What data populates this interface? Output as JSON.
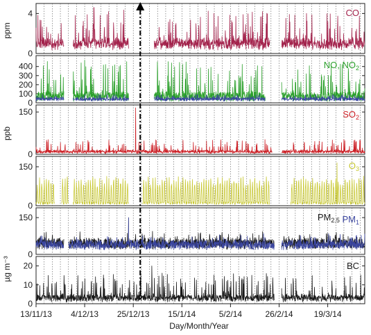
{
  "chart_data": {
    "type": "line",
    "xlabel": "Day/Month/Year",
    "x_tick_labels": [
      "13/11/13",
      "4/12/13",
      "25/12/13",
      "15/1/14",
      "5/2/14",
      "26/2/14",
      "19/3/14"
    ],
    "x_range": [
      "13/11/13",
      "4/4/14"
    ],
    "event_marker_date": "28/12/13",
    "ylabels": {
      "ppm": "ppm",
      "ppb": "ppb",
      "ugm3": "µg m⁻³"
    },
    "panels": [
      {
        "id": "co",
        "ylim": [
          0,
          5
        ],
        "yticks": [
          0,
          4
        ],
        "ytick_labels": [
          "0",
          "4"
        ],
        "labels": [
          {
            "text": "CO",
            "color": "#a3234c"
          }
        ],
        "series": [
          {
            "name": "CO",
            "color": "#a3234c",
            "base": 0.6,
            "spike": 2.2,
            "max": 4.6,
            "peak_date": "8/12/13",
            "gaps": [
              [
                "25/11/13",
                "29/11/13"
              ],
              [
                "23/12/13",
                "3/1/14"
              ],
              [
                "22/2/14",
                "27/2/14"
              ]
            ]
          }
        ]
      },
      {
        "id": "nox",
        "ylim": [
          0,
          520
        ],
        "yticks": [
          0,
          100,
          200,
          300,
          400
        ],
        "ytick_labels": [
          "0",
          "100",
          "200",
          "300",
          "400"
        ],
        "labels": [
          {
            "text": "NO, NO",
            "sub": "2",
            "color": "#2ca02c"
          }
        ],
        "series": [
          {
            "name": "NO",
            "color": "#2ca02c",
            "base": 25,
            "spike": 270,
            "max": 470,
            "peak_date": "4/12/13",
            "gaps": [
              [
                "25/11/13",
                "29/11/13"
              ],
              [
                "23/12/13",
                "3/1/14"
              ],
              [
                "20/2/14",
                "27/2/14"
              ]
            ]
          },
          {
            "name": "NO2",
            "color": "#3b46a0",
            "base": 35,
            "spike": 35,
            "max": 90,
            "peak_date": "4/12/13",
            "gaps": [
              [
                "25/11/13",
                "29/11/13"
              ],
              [
                "23/12/13",
                "3/1/14"
              ],
              [
                "20/2/14",
                "27/2/14"
              ]
            ]
          }
        ]
      },
      {
        "id": "so2",
        "ylim": [
          0,
          175
        ],
        "yticks": [
          0,
          150
        ],
        "ytick_labels": [
          "0",
          "150"
        ],
        "labels": [
          {
            "text": "SO",
            "sub": "2",
            "color": "#cc2127"
          }
        ],
        "series": [
          {
            "name": "SO2",
            "color": "#cc2127",
            "base": 4,
            "spike": 30,
            "max": 165,
            "peak_date": "26/12/13",
            "gaps": [
              [
                "23/2/14",
                "27/2/14"
              ]
            ]
          }
        ]
      },
      {
        "id": "o3",
        "ylim": [
          0,
          190
        ],
        "yticks": [
          0,
          150
        ],
        "ytick_labels": [
          "0",
          "150"
        ],
        "labels": [
          {
            "text": "O",
            "sub": "3",
            "color": "#c8c833"
          }
        ],
        "series": [
          {
            "name": "O3",
            "color": "#c8c833",
            "base": 5,
            "spike": 95,
            "max": 165,
            "peak_date": "23/3/14",
            "gaps": [
              [
                "21/11/13",
                "24/11/13"
              ],
              [
                "27/11/13",
                "29/11/13"
              ],
              [
                "23/12/13",
                "29/12/13"
              ],
              [
                "22/2/14",
                "3/3/14"
              ]
            ]
          }
        ]
      },
      {
        "id": "pm",
        "ylim": [
          0,
          190
        ],
        "yticks": [
          0,
          150
        ],
        "ytick_labels": [
          "0",
          "150"
        ],
        "labels": [
          {
            "text": "PM",
            "sub": "2.5",
            "color": "#1a1a1a"
          },
          {
            "text": " PM",
            "sub": "1",
            "color": "#3b46a0"
          }
        ],
        "series": [
          {
            "name": "PM2.5",
            "color": "#1a1a1a",
            "base": 40,
            "spike": 25,
            "max": 150,
            "peak_date": "23/12/13",
            "gaps": [
              [
                "25/11/13",
                "27/11/13"
              ],
              [
                "24/2/14",
                "27/2/14"
              ]
            ]
          },
          {
            "name": "PM1",
            "color": "#3b46a0",
            "base": 35,
            "spike": 22,
            "max": 150,
            "peak_date": "23/12/13",
            "gaps": [
              [
                "25/11/13",
                "27/11/13"
              ],
              [
                "24/2/14",
                "27/2/14"
              ]
            ]
          }
        ]
      },
      {
        "id": "bc",
        "ylim": [
          0,
          25
        ],
        "yticks": [
          0,
          10,
          20
        ],
        "ytick_labels": [
          "0",
          "10",
          "20"
        ],
        "labels": [
          {
            "text": "BC",
            "color": "#1a1a1a"
          }
        ],
        "series": [
          {
            "name": "BC",
            "color": "#1a1a1a",
            "base": 1.5,
            "spike": 9,
            "max": 20,
            "peak_date": "2/1/14",
            "gaps": [
              [
                "24/2/14",
                "27/2/14"
              ]
            ]
          }
        ]
      }
    ],
    "grid": "vertical dotted lines every 3-4 days"
  }
}
